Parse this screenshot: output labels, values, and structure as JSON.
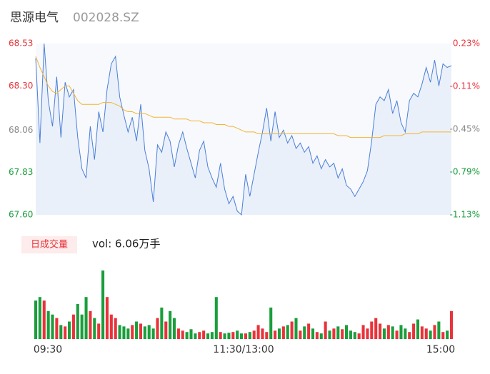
{
  "header": {
    "name": "思源电气",
    "code": "002028.SZ"
  },
  "chart_data": {
    "type": "intraday",
    "ylim": [
      67.6,
      68.53
    ],
    "yticks": [
      {
        "value": 68.53,
        "label": "68.53"
      },
      {
        "value": 68.3,
        "label": "68.30"
      },
      {
        "value": 68.06,
        "label": "68.06"
      },
      {
        "value": 67.83,
        "label": "67.83"
      },
      {
        "value": 67.6,
        "label": "67.60"
      }
    ],
    "y2lim": [
      -1.13,
      0.23
    ],
    "y2ticks": [
      {
        "value": 0.23,
        "label": "0.23%"
      },
      {
        "value": -0.11,
        "label": "-0.11%"
      },
      {
        "value": -0.45,
        "label": "-0.45%"
      },
      {
        "value": -0.79,
        "label": "-0.79%"
      },
      {
        "value": -1.13,
        "label": "-1.13%"
      }
    ],
    "tick_colors": [
      "#e8333a",
      "#e8333a",
      "#888888",
      "#1a9e3c",
      "#1a9e3c"
    ],
    "time_labels": [
      "09:30",
      "11:30/13:00",
      "15:00"
    ],
    "series": [
      {
        "name": "price",
        "color": "#4a7fd8",
        "values": [
          68.45,
          67.99,
          68.53,
          68.22,
          68.08,
          68.35,
          68.02,
          68.32,
          68.24,
          68.28,
          68.02,
          67.85,
          67.8,
          68.08,
          67.9,
          68.16,
          68.05,
          68.28,
          68.42,
          68.46,
          68.24,
          68.14,
          68.05,
          68.13,
          68.0,
          68.2,
          67.95,
          67.85,
          67.67,
          67.98,
          67.94,
          68.05,
          68.0,
          67.86,
          67.98,
          68.05,
          67.96,
          67.88,
          67.8,
          67.95,
          68.0,
          67.86,
          67.8,
          67.75,
          67.88,
          67.74,
          67.66,
          67.7,
          67.62,
          67.6,
          67.82,
          67.7,
          67.82,
          67.94,
          68.05,
          68.18,
          68.0,
          68.16,
          68.02,
          68.06,
          67.99,
          68.03,
          67.96,
          67.99,
          67.94,
          67.97,
          67.88,
          67.92,
          67.85,
          67.9,
          67.86,
          67.88,
          67.8,
          67.85,
          67.76,
          67.74,
          67.7,
          67.74,
          67.78,
          67.84,
          68.0,
          68.2,
          68.24,
          68.22,
          68.28,
          68.15,
          68.22,
          68.1,
          68.05,
          68.22,
          68.26,
          68.24,
          68.31,
          68.4,
          68.32,
          68.44,
          68.3,
          68.42,
          68.4,
          68.41
        ]
      },
      {
        "name": "average",
        "color": "#f5b335",
        "values": [
          68.46,
          68.4,
          68.35,
          68.3,
          68.27,
          68.26,
          68.28,
          68.3,
          68.3,
          68.26,
          68.22,
          68.2,
          68.2,
          68.2,
          68.2,
          68.2,
          68.21,
          68.21,
          68.21,
          68.2,
          68.19,
          68.17,
          68.16,
          68.16,
          68.15,
          68.15,
          68.15,
          68.14,
          68.13,
          68.13,
          68.13,
          68.13,
          68.13,
          68.12,
          68.12,
          68.12,
          68.12,
          68.11,
          68.11,
          68.11,
          68.1,
          68.1,
          68.1,
          68.09,
          68.09,
          68.09,
          68.08,
          68.08,
          68.07,
          68.06,
          68.05,
          68.05,
          68.05,
          68.04,
          68.04,
          68.04,
          68.04,
          68.04,
          68.04,
          68.04,
          68.04,
          68.04,
          68.04,
          68.04,
          68.04,
          68.04,
          68.04,
          68.04,
          68.04,
          68.04,
          68.04,
          68.04,
          68.03,
          68.03,
          68.03,
          68.02,
          68.02,
          68.02,
          68.02,
          68.02,
          68.02,
          68.02,
          68.02,
          68.03,
          68.03,
          68.03,
          68.03,
          68.03,
          68.04,
          68.04,
          68.04,
          68.04,
          68.05,
          68.05,
          68.05,
          68.05,
          68.05,
          68.05,
          68.05,
          68.05
        ]
      }
    ],
    "volume": {
      "legend": "日成交量",
      "summary": "vol: 6.06万手",
      "up_color": "#e8333a",
      "down_color": "#1a9e3c",
      "ylim": [
        0,
        100
      ],
      "values": [
        55,
        60,
        55,
        40,
        35,
        30,
        20,
        18,
        25,
        35,
        50,
        35,
        60,
        40,
        30,
        22,
        98,
        60,
        35,
        30,
        20,
        18,
        15,
        20,
        25,
        22,
        18,
        20,
        15,
        30,
        45,
        25,
        40,
        30,
        15,
        12,
        10,
        14,
        8,
        10,
        12,
        8,
        10,
        60,
        10,
        8,
        9,
        10,
        12,
        8,
        8,
        10,
        12,
        20,
        15,
        10,
        45,
        12,
        15,
        18,
        20,
        25,
        30,
        12,
        18,
        22,
        15,
        10,
        8,
        25,
        12,
        15,
        18,
        14,
        20,
        12,
        10,
        8,
        20,
        15,
        25,
        30,
        22,
        15,
        20,
        18,
        12,
        20,
        15,
        10,
        22,
        28,
        18,
        15,
        12,
        20,
        25,
        10,
        12,
        40
      ]
    }
  }
}
